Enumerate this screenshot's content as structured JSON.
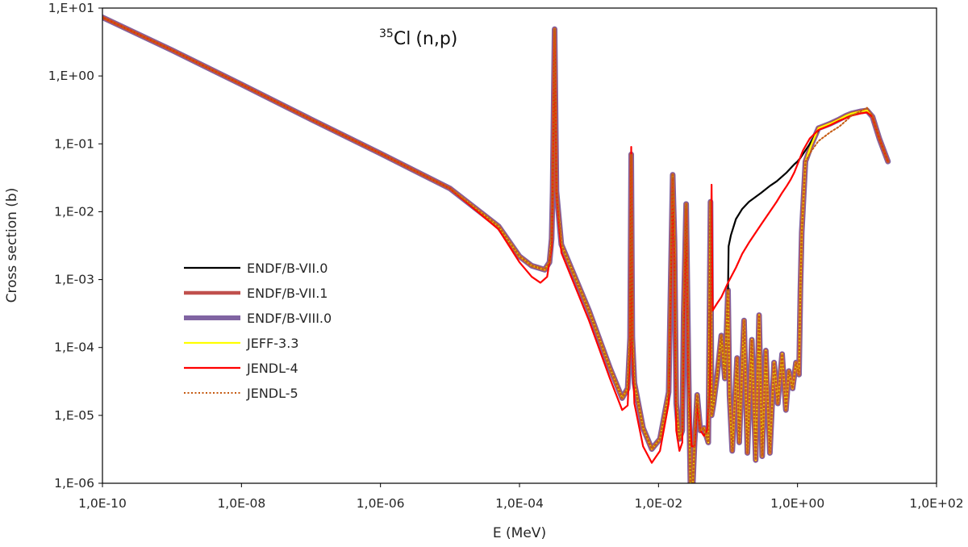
{
  "chart_data": {
    "type": "line",
    "title": "(n,p)",
    "title_nuclide_mass": "35",
    "title_nuclide_symbol": "Cl",
    "xlabel": "E (MeV)",
    "ylabel": "Cross section (b)",
    "xscale": "log",
    "yscale": "log",
    "xlim": [
      1e-10,
      100
    ],
    "ylim": [
      1e-06,
      10
    ],
    "grid": false,
    "legend_position": "lower-left",
    "x_tick_labels": [
      "1,0E-10",
      "1,0E-08",
      "1,0E-06",
      "1,0E-04",
      "1,0E-02",
      "1,0E+00",
      "1,0E+02"
    ],
    "x_tick_values": [
      1e-10,
      1e-08,
      1e-06,
      0.0001,
      0.01,
      1,
      100
    ],
    "y_tick_labels": [
      "1,E-06",
      "1,E-05",
      "1,E-04",
      "1,E-03",
      "1,E-02",
      "1,E-01",
      "1,E+00",
      "1,E+01"
    ],
    "y_tick_values": [
      1e-06,
      1e-05,
      0.0001,
      0.001,
      0.01,
      0.1,
      1,
      10
    ],
    "series": [
      {
        "name": "ENDF/B-VIII.0",
        "color": "#8064A2",
        "style": "solid-thick",
        "x": [
          1e-10,
          1e-09,
          1e-08,
          1e-07,
          1e-06,
          1e-05,
          5e-05,
          0.0001,
          0.00015,
          0.00023,
          0.00027,
          0.00029,
          0.0003,
          0.00032,
          0.00034,
          0.0004,
          0.001,
          0.002,
          0.003,
          0.0036,
          0.0039,
          0.00405,
          0.0042,
          0.0045,
          0.006,
          0.008,
          0.0105,
          0.014,
          0.016,
          0.017,
          0.018,
          0.02,
          0.022,
          0.023,
          0.025,
          0.027,
          0.029,
          0.031,
          0.033,
          0.036,
          0.04,
          0.045,
          0.052,
          0.056,
          0.058,
          0.062,
          0.07,
          0.08,
          0.09,
          0.1,
          0.105,
          0.115,
          0.135,
          0.145,
          0.17,
          0.19,
          0.22,
          0.25,
          0.28,
          0.31,
          0.35,
          0.4,
          0.46,
          0.52,
          0.6,
          0.68,
          0.75,
          0.85,
          0.95,
          1.05,
          1.1,
          1.15,
          1.3,
          1.6,
          2,
          3,
          4,
          5,
          6,
          8,
          10,
          12,
          15,
          20
        ],
        "y": [
          7.3,
          2.4,
          0.75,
          0.23,
          0.072,
          0.022,
          0.0061,
          0.0022,
          0.0016,
          0.0014,
          0.0018,
          0.004,
          0.02,
          4.9,
          0.02,
          0.0033,
          0.00035,
          5e-05,
          1.8e-05,
          2.5e-05,
          0.00014,
          0.07,
          0.00014,
          3e-05,
          6.5e-06,
          3.2e-06,
          4.5e-06,
          2.2e-05,
          0.035,
          0.0035,
          1.5e-05,
          4.5e-06,
          6e-06,
          0.0003,
          0.013,
          5e-05,
          6e-07,
          8.5e-07,
          4e-06,
          2e-05,
          6e-06,
          6.5e-06,
          4e-06,
          0.014,
          1e-05,
          1.5e-05,
          4e-05,
          0.00015,
          3.5e-05,
          0.0007,
          2e-05,
          3e-06,
          7e-05,
          4e-06,
          0.00025,
          2.8e-06,
          0.00013,
          2.2e-06,
          0.0003,
          2.5e-06,
          9e-05,
          2.8e-06,
          6e-05,
          1.5e-05,
          8e-05,
          1.2e-05,
          4.5e-05,
          2.5e-05,
          6e-05,
          4e-05,
          0.0007,
          0.005,
          0.055,
          0.1,
          0.17,
          0.2,
          0.23,
          0.26,
          0.28,
          0.3,
          0.31,
          0.25,
          0.12,
          0.055
        ]
      },
      {
        "name": "ENDF/B-VII.1",
        "color": "#C0504D",
        "style": "solid-thick",
        "x": [
          1e-10,
          1e-09,
          1e-08,
          1e-07,
          1e-06,
          1e-05,
          5e-05,
          0.0001,
          0.00015,
          0.00023,
          0.00027,
          0.00029,
          0.0003,
          0.00032,
          0.00034,
          0.0004,
          0.001,
          0.002,
          0.003,
          0.0036,
          0.0039,
          0.00405,
          0.0042,
          0.0045,
          0.006,
          0.008,
          0.0105,
          0.014,
          0.016,
          0.017,
          0.018,
          0.02,
          0.022,
          0.023,
          0.025,
          0.027,
          0.029,
          0.031,
          0.033,
          0.036,
          0.04,
          0.045,
          0.052,
          0.056,
          0.058,
          0.062,
          0.07,
          0.08,
          0.09,
          0.1,
          0.105,
          0.115,
          0.135,
          0.145,
          0.17,
          0.19,
          0.22,
          0.25,
          0.28,
          0.31,
          0.35,
          0.4,
          0.46,
          0.52,
          0.6,
          0.68,
          0.75,
          0.85,
          0.95,
          1.05,
          1.1,
          1.15,
          1.3,
          1.6,
          2,
          3,
          4,
          5,
          6,
          8,
          10,
          12,
          15,
          20
        ],
        "y": [
          7.3,
          2.4,
          0.75,
          0.23,
          0.072,
          0.022,
          0.0061,
          0.0022,
          0.0016,
          0.0014,
          0.0018,
          0.004,
          0.02,
          4.9,
          0.02,
          0.0033,
          0.00035,
          5e-05,
          1.8e-05,
          2.5e-05,
          0.00014,
          0.07,
          0.00014,
          3e-05,
          6.5e-06,
          3.2e-06,
          4.5e-06,
          2.2e-05,
          0.035,
          0.0035,
          1.5e-05,
          4.5e-06,
          6e-06,
          0.0003,
          0.013,
          5e-05,
          6e-07,
          8.5e-07,
          4e-06,
          2e-05,
          6e-06,
          6.5e-06,
          4e-06,
          0.014,
          1e-05,
          1.5e-05,
          4e-05,
          0.00015,
          3.5e-05,
          0.0007,
          2e-05,
          3e-06,
          7e-05,
          4e-06,
          0.00025,
          2.8e-06,
          0.00013,
          2.2e-06,
          0.0003,
          2.5e-06,
          9e-05,
          2.8e-06,
          6e-05,
          1.5e-05,
          8e-05,
          1.2e-05,
          4.5e-05,
          2.5e-05,
          6e-05,
          4e-05,
          0.0007,
          0.005,
          0.055,
          0.1,
          0.17,
          0.2,
          0.23,
          0.26,
          0.28,
          0.3,
          0.31,
          0.25,
          0.12,
          0.055
        ]
      },
      {
        "name": "ENDF/B-VII.0",
        "color": "#000000",
        "style": "solid",
        "x": [
          1e-10,
          1e-09,
          1e-08,
          1e-07,
          1e-06,
          1e-05,
          5e-05,
          0.0001,
          0.00015,
          0.00023,
          0.00027,
          0.00029,
          0.0003,
          0.00032,
          0.00034,
          0.0004,
          0.001,
          0.002,
          0.003,
          0.0036,
          0.0039,
          0.00405,
          0.0042,
          0.0045,
          0.006,
          0.008,
          0.0105,
          0.014,
          0.016,
          0.017,
          0.018,
          0.02,
          0.022,
          0.023,
          0.025,
          0.027,
          0.029,
          0.031,
          0.033,
          0.036,
          0.04,
          0.045,
          0.052,
          0.056,
          0.058,
          0.062,
          0.07,
          0.08,
          0.09,
          0.1,
          0.102,
          0.11,
          0.13,
          0.16,
          0.2,
          0.3,
          0.4,
          0.5,
          0.6,
          0.7,
          0.8,
          0.9,
          1,
          1.1,
          1.3,
          1.6,
          2,
          3,
          4,
          5,
          6,
          8,
          10,
          12,
          15,
          20
        ],
        "y": [
          7.3,
          2.4,
          0.75,
          0.23,
          0.072,
          0.022,
          0.0061,
          0.0022,
          0.0016,
          0.0014,
          0.0018,
          0.004,
          0.02,
          4.9,
          0.02,
          0.0033,
          0.00035,
          5e-05,
          1.8e-05,
          2.5e-05,
          0.00014,
          0.07,
          0.00014,
          3e-05,
          6.5e-06,
          3.2e-06,
          4.5e-06,
          2.2e-05,
          0.035,
          0.0035,
          1.5e-05,
          4.5e-06,
          6e-06,
          0.0003,
          0.013,
          5e-05,
          6e-07,
          8.5e-07,
          4e-06,
          2e-05,
          6e-06,
          6.5e-06,
          4e-06,
          0.014,
          1e-05,
          1.5e-05,
          4e-05,
          0.00015,
          3.5e-05,
          0.0007,
          0.0031,
          0.0045,
          0.0078,
          0.011,
          0.014,
          0.019,
          0.024,
          0.028,
          0.033,
          0.038,
          0.044,
          0.05,
          0.055,
          0.062,
          0.08,
          0.11,
          0.16,
          0.2,
          0.23,
          0.26,
          0.28,
          0.3,
          0.31,
          0.25,
          0.12,
          0.055
        ]
      },
      {
        "name": "JEFF-3.3",
        "color": "#FFFF00",
        "style": "solid",
        "x": [
          1e-10,
          1e-09,
          1e-08,
          1e-07,
          1e-06,
          1e-05,
          5e-05,
          0.0001,
          0.00015,
          0.00023,
          0.00027,
          0.00029,
          0.0003,
          0.00032,
          0.00034,
          0.0004,
          0.001,
          0.002,
          0.003,
          0.0036,
          0.0039,
          0.00405,
          0.0042,
          0.0045,
          0.006,
          0.008,
          0.0105,
          0.014,
          0.016,
          0.017,
          0.018,
          0.02,
          0.022,
          0.023,
          0.025,
          0.027,
          0.029,
          0.031,
          0.033,
          0.036,
          0.04,
          0.045,
          0.052,
          0.056,
          0.058,
          0.062,
          0.07,
          0.08,
          0.09,
          0.1,
          0.105,
          0.115,
          0.135,
          0.145,
          0.17,
          0.19,
          0.22,
          0.25,
          0.28,
          0.31,
          0.35,
          0.4,
          0.46,
          0.52,
          0.6,
          0.68,
          0.75,
          0.85,
          0.95,
          1.05,
          1.1,
          1.15,
          1.3,
          1.6,
          2,
          3,
          4,
          5,
          6,
          8,
          10,
          12,
          15,
          20
        ],
        "y": [
          7.3,
          2.4,
          0.75,
          0.23,
          0.072,
          0.022,
          0.0061,
          0.0022,
          0.0016,
          0.0014,
          0.0018,
          0.004,
          0.02,
          4.9,
          0.02,
          0.0033,
          0.00035,
          5e-05,
          1.8e-05,
          2.5e-05,
          0.00014,
          0.07,
          0.00014,
          3e-05,
          6.5e-06,
          3.2e-06,
          4.5e-06,
          2.2e-05,
          0.035,
          0.0035,
          1.5e-05,
          4.5e-06,
          6e-06,
          0.0003,
          0.013,
          5e-05,
          6e-07,
          8.5e-07,
          4e-06,
          2e-05,
          6e-06,
          6.5e-06,
          4e-06,
          0.014,
          1e-05,
          1.5e-05,
          4e-05,
          0.00015,
          3.5e-05,
          0.0007,
          2e-05,
          3e-06,
          7e-05,
          4e-06,
          0.00025,
          2.8e-06,
          0.00013,
          2.2e-06,
          0.0003,
          2.5e-06,
          9e-05,
          2.8e-06,
          6e-05,
          1.5e-05,
          8e-05,
          1.2e-05,
          4.5e-05,
          2.5e-05,
          6e-05,
          4e-05,
          0.0007,
          0.005,
          0.055,
          0.1,
          0.17,
          0.2,
          0.23,
          0.26,
          0.28,
          0.3,
          0.31,
          0.25,
          0.12,
          0.055
        ]
      },
      {
        "name": "JENDL-4",
        "color": "#FF0000",
        "style": "solid",
        "x": [
          1e-10,
          1e-09,
          1e-08,
          1e-07,
          1e-06,
          1e-05,
          5e-05,
          0.0001,
          0.00015,
          0.0002,
          0.00025,
          0.00029,
          0.0003,
          0.00032,
          0.00034,
          0.0004,
          0.001,
          0.002,
          0.003,
          0.0036,
          0.0039,
          0.00405,
          0.0042,
          0.0045,
          0.006,
          0.008,
          0.0105,
          0.014,
          0.016,
          0.017,
          0.018,
          0.02,
          0.022,
          0.023,
          0.025,
          0.027,
          0.03,
          0.033,
          0.036,
          0.04,
          0.045,
          0.05,
          0.055,
          0.058,
          0.06,
          0.07,
          0.08,
          0.1,
          0.13,
          0.16,
          0.2,
          0.3,
          0.4,
          0.5,
          0.6,
          0.7,
          0.8,
          0.9,
          1,
          1.2,
          1.5,
          2,
          3,
          4,
          5,
          6,
          8,
          10,
          12,
          15,
          20
        ],
        "y": [
          7.3,
          2.4,
          0.75,
          0.23,
          0.072,
          0.022,
          0.0055,
          0.0018,
          0.0011,
          0.0009,
          0.0011,
          0.003,
          0.02,
          4.6,
          0.02,
          0.0025,
          0.00025,
          3.5e-05,
          1.2e-05,
          1.4e-05,
          0.0001,
          0.09,
          0.0001,
          1.5e-05,
          3.5e-06,
          2e-06,
          3e-06,
          1.5e-05,
          0.03,
          0.002,
          6e-06,
          3e-06,
          4e-06,
          0.0002,
          0.011,
          3e-05,
          3.5e-06,
          3.5e-06,
          1.5e-05,
          6e-06,
          5e-06,
          6e-06,
          3e-05,
          0.025,
          0.00035,
          0.00045,
          0.00055,
          0.0009,
          0.0015,
          0.0024,
          0.0035,
          0.0065,
          0.01,
          0.014,
          0.019,
          0.024,
          0.03,
          0.038,
          0.05,
          0.08,
          0.12,
          0.16,
          0.19,
          0.22,
          0.24,
          0.26,
          0.28,
          0.29,
          0.25,
          0.12,
          0.055
        ]
      },
      {
        "name": "JENDL-5",
        "color": "#C55A11",
        "style": "dotted",
        "x": [
          1e-10,
          1e-09,
          1e-08,
          1e-07,
          1e-06,
          1e-05,
          5e-05,
          0.0001,
          0.00015,
          0.00023,
          0.00027,
          0.00029,
          0.0003,
          0.00032,
          0.00034,
          0.0004,
          0.001,
          0.002,
          0.003,
          0.0036,
          0.0039,
          0.00405,
          0.0042,
          0.0045,
          0.006,
          0.008,
          0.0105,
          0.014,
          0.016,
          0.017,
          0.018,
          0.02,
          0.022,
          0.023,
          0.025,
          0.027,
          0.029,
          0.031,
          0.033,
          0.036,
          0.04,
          0.045,
          0.052,
          0.056,
          0.058,
          0.062,
          0.07,
          0.08,
          0.09,
          0.1,
          0.105,
          0.115,
          0.135,
          0.145,
          0.17,
          0.19,
          0.22,
          0.25,
          0.28,
          0.31,
          0.35,
          0.4,
          0.46,
          0.52,
          0.6,
          0.68,
          0.75,
          0.85,
          0.95,
          1.05,
          1.1,
          1.15,
          1.3,
          1.6,
          2,
          3,
          4,
          5,
          6,
          8,
          10,
          12,
          15,
          20
        ],
        "y": [
          7.3,
          2.4,
          0.75,
          0.23,
          0.072,
          0.022,
          0.0061,
          0.0022,
          0.0016,
          0.0014,
          0.0018,
          0.004,
          0.02,
          4.9,
          0.02,
          0.0033,
          0.00035,
          5e-05,
          1.8e-05,
          2.5e-05,
          0.00014,
          0.07,
          0.00014,
          3e-05,
          6.5e-06,
          3.2e-06,
          4.5e-06,
          2.2e-05,
          0.035,
          0.0035,
          1.5e-05,
          4.5e-06,
          6e-06,
          0.0003,
          0.013,
          5e-05,
          6e-07,
          8.5e-07,
          4e-06,
          2e-05,
          6e-06,
          6.5e-06,
          4e-06,
          0.014,
          1e-05,
          1.5e-05,
          4e-05,
          0.00015,
          3.5e-05,
          0.0007,
          2e-05,
          3e-06,
          7e-05,
          4e-06,
          0.00025,
          2.8e-06,
          0.00013,
          2.2e-06,
          0.0003,
          2.5e-06,
          9e-05,
          2.8e-06,
          6e-05,
          1.5e-05,
          8e-05,
          1.2e-05,
          4.5e-05,
          2.5e-05,
          6e-05,
          4e-05,
          0.0007,
          0.005,
          0.055,
          0.08,
          0.11,
          0.15,
          0.18,
          0.22,
          0.26,
          0.3,
          0.34,
          0.26,
          0.12,
          0.055
        ]
      }
    ],
    "legend_order": [
      "ENDF/B-VII.0",
      "ENDF/B-VII.1",
      "ENDF/B-VIII.0",
      "JEFF-3.3",
      "JENDL-4",
      "JENDL-5"
    ]
  }
}
